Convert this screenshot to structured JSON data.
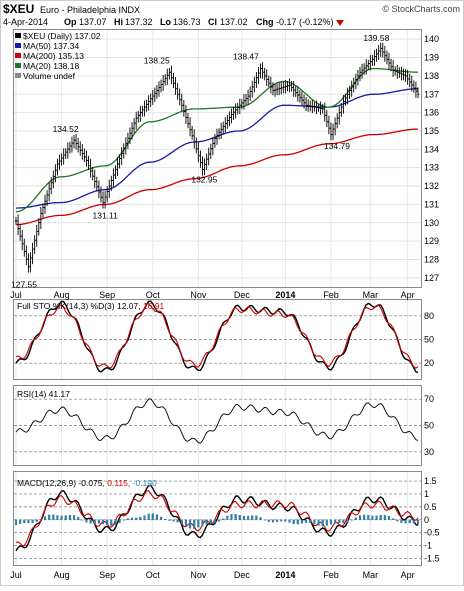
{
  "header": {
    "symbol": "$XEU",
    "name": "Euro - Philadelphia INDX",
    "credit": "© StockCharts.com",
    "date": "4-Apr-2014",
    "open_label": "Op",
    "open": "137.07",
    "high_label": "Hi",
    "high": "137.32",
    "low_label": "Lo",
    "low": "136.73",
    "close_label": "Cl",
    "close": "137.02",
    "chg_label": "Chg",
    "chg": "-0.17 (-0.12%)",
    "chg_icon": "down-triangle"
  },
  "colors": {
    "price": "#000000",
    "ma50": "#1a1aaa",
    "ma200": "#cc0000",
    "ma20": "#227722",
    "sto_k": "#000000",
    "sto_d": "#cc0000",
    "rsi": "#000000",
    "macd": "#000000",
    "signal": "#cc0000",
    "hist": "#2a84b0",
    "hist_edge": "#1e5f80"
  },
  "legend": [
    {
      "label": "$XEU (Daily) 137.02",
      "color": "#000000"
    },
    {
      "label": "MA(50) 137.34",
      "color": "#1a1aaa"
    },
    {
      "label": "MA(200) 135.13",
      "color": "#cc0000"
    },
    {
      "label": "MA(20) 138.18",
      "color": "#227722"
    },
    {
      "label": "Volume undef",
      "color": "#666666"
    }
  ],
  "price_annotations": [
    "127.55",
    "131.11",
    "134.52",
    "138.25",
    "132.95",
    "138.47",
    "134.79",
    "139.58"
  ],
  "x_months": [
    "Jul",
    "Aug",
    "Sep",
    "Oct",
    "Nov",
    "Dec",
    "2014",
    "Feb",
    "Mar",
    "Apr"
  ],
  "sto_label": {
    "text": "Full STO %K(14,3) %D(3) 12.07,",
    "dval": "16.91"
  },
  "rsi_label": "RSI(14) 41.17",
  "macd_label": {
    "text": "MACD(12,26,9) -0.075,",
    "signal": "0.115,",
    "hist": "-0.190"
  },
  "chart_data": [
    {
      "type": "line",
      "title": "$XEU Euro - Philadelphia INDX",
      "x": [
        "Jul",
        "Aug",
        "Sep",
        "Oct",
        "Nov",
        "Dec",
        "2014",
        "Feb",
        "Mar",
        "Apr"
      ],
      "series": [
        {
          "name": "$XEU (Daily)",
          "values": [
            130.0,
            133.6,
            131.4,
            137.1,
            134.8,
            137.2,
            137.5,
            135.8,
            139.1,
            137.0
          ]
        },
        {
          "name": "MA(50)",
          "values": [
            130.8,
            131.1,
            131.8,
            133.3,
            134.4,
            135.0,
            136.4,
            136.3,
            137.0,
            137.3
          ]
        },
        {
          "name": "MA(200)",
          "values": [
            129.9,
            130.4,
            131.0,
            131.8,
            132.4,
            133.1,
            133.7,
            134.3,
            134.8,
            135.1
          ]
        },
        {
          "name": "MA(20)",
          "values": [
            130.6,
            132.5,
            133.1,
            135.5,
            136.2,
            136.3,
            137.7,
            136.3,
            138.4,
            138.2
          ]
        }
      ],
      "ylim": [
        126.5,
        140.5
      ],
      "yticks": [
        127,
        128,
        129,
        130,
        131,
        132,
        133,
        134,
        135,
        136,
        137,
        138,
        139,
        140
      ],
      "annotations": [
        {
          "x": "Jul",
          "y": 127.55,
          "text": "127.55"
        },
        {
          "x": "Sep",
          "y": 131.11,
          "text": "131.11"
        },
        {
          "x": "Aug",
          "y": 134.52,
          "text": "134.52"
        },
        {
          "x": "Oct",
          "y": 138.25,
          "text": "138.25"
        },
        {
          "x": "Nov",
          "y": 132.95,
          "text": "132.95"
        },
        {
          "x": "Dec",
          "y": 138.47,
          "text": "138.47"
        },
        {
          "x": "Feb",
          "y": 134.79,
          "text": "134.79"
        },
        {
          "x": "Mar",
          "y": 139.58,
          "text": "139.58"
        }
      ],
      "grid": true,
      "legend_position": "top-left"
    },
    {
      "type": "line",
      "series": [
        {
          "name": "%K",
          "values": [
            20,
            95,
            10,
            95,
            12,
            90,
            85,
            15,
            95,
            12
          ]
        },
        {
          "name": "%D",
          "values": [
            25,
            90,
            15,
            92,
            18,
            88,
            82,
            20,
            92,
            17
          ]
        }
      ],
      "ylim": [
        0,
        100
      ],
      "yticks": [
        20,
        50,
        80
      ],
      "grid": true
    },
    {
      "type": "line",
      "series": [
        {
          "name": "RSI(14)",
          "values": [
            45,
            62,
            40,
            68,
            38,
            64,
            60,
            42,
            66,
            41
          ]
        }
      ],
      "ylim": [
        20,
        80
      ],
      "yticks": [
        30,
        50,
        70
      ],
      "grid": true
    },
    {
      "type": "line",
      "series": [
        {
          "name": "MACD(12,26,9)",
          "values": [
            -1.2,
            1.0,
            -0.4,
            1.2,
            -0.6,
            0.8,
            0.5,
            -0.5,
            0.8,
            -0.075
          ]
        },
        {
          "name": "Signal",
          "values": [
            -1.0,
            0.8,
            -0.2,
            1.0,
            -0.3,
            0.6,
            0.6,
            -0.3,
            0.6,
            0.115
          ]
        },
        {
          "name": "Histogram",
          "values": [
            -0.2,
            0.2,
            -0.2,
            0.2,
            -0.3,
            0.2,
            -0.1,
            -0.2,
            0.2,
            -0.19
          ]
        }
      ],
      "ylim": [
        -1.75,
        1.85
      ],
      "yticks": [
        -1.5,
        -1.0,
        -0.5,
        0.0,
        0.5,
        1.0,
        1.5
      ],
      "grid": true
    }
  ]
}
